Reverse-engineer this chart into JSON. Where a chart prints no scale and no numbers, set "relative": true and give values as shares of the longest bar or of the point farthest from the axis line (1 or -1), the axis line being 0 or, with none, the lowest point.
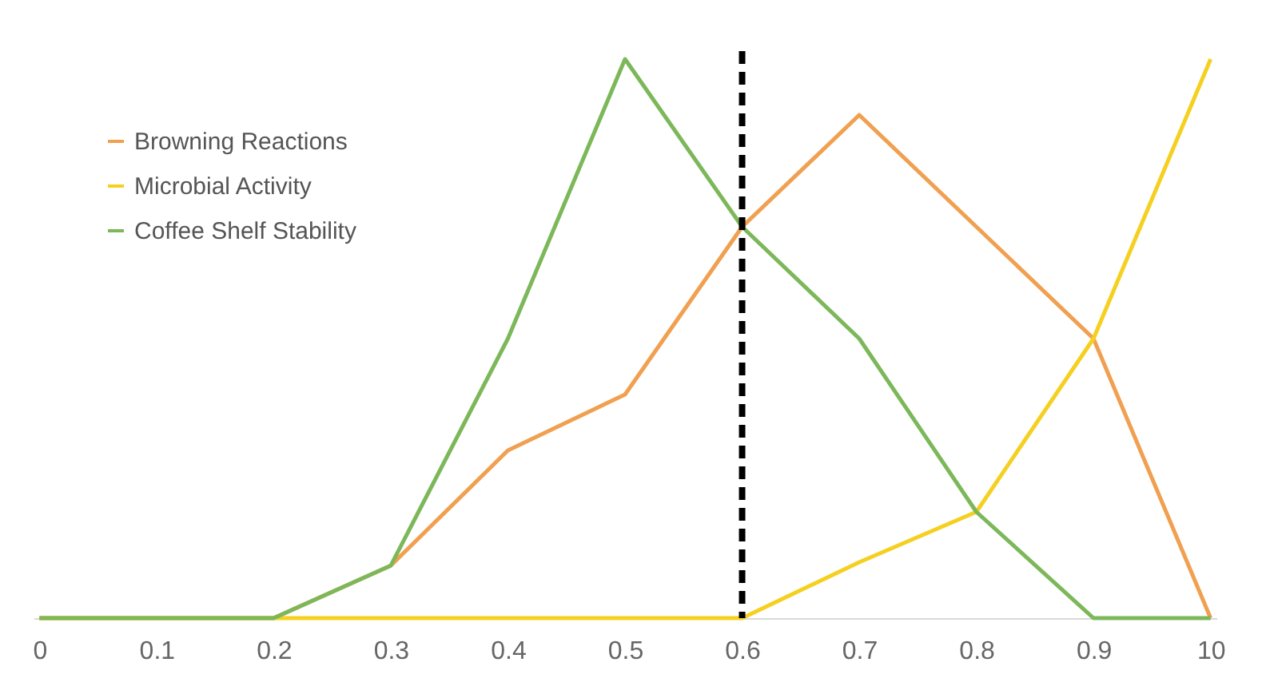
{
  "chart_data": {
    "type": "line",
    "relative": true,
    "categories": [
      "0",
      "0.1",
      "0.2",
      "0.3",
      "0.4",
      "0.5",
      "0.6",
      "0.7",
      "0.8",
      "0.9",
      "10"
    ],
    "series": [
      {
        "name": "Browning Reactions",
        "color": "#f0a050",
        "values": [
          0,
          0,
          0,
          0.094,
          0.3,
          0.4,
          0.7,
          0.9,
          0.7,
          0.5,
          0
        ]
      },
      {
        "name": "Microbial Activity",
        "color": "#f5d020",
        "values": [
          0,
          0,
          0,
          0,
          0,
          0,
          0,
          0.1,
          0.19,
          0.5,
          1
        ]
      },
      {
        "name": "Coffee Shelf Stability",
        "color": "#7cb85a",
        "values": [
          0,
          0,
          0,
          0.094,
          0.5,
          1,
          0.7,
          0.5,
          0.19,
          0,
          0
        ]
      }
    ],
    "ref_lines": [
      {
        "axis": "x",
        "value": "0.6",
        "color": "#000000",
        "line_style": "dashed"
      }
    ],
    "legend": "top left",
    "grid": false,
    "marker": "none",
    "line_style": "solid"
  }
}
